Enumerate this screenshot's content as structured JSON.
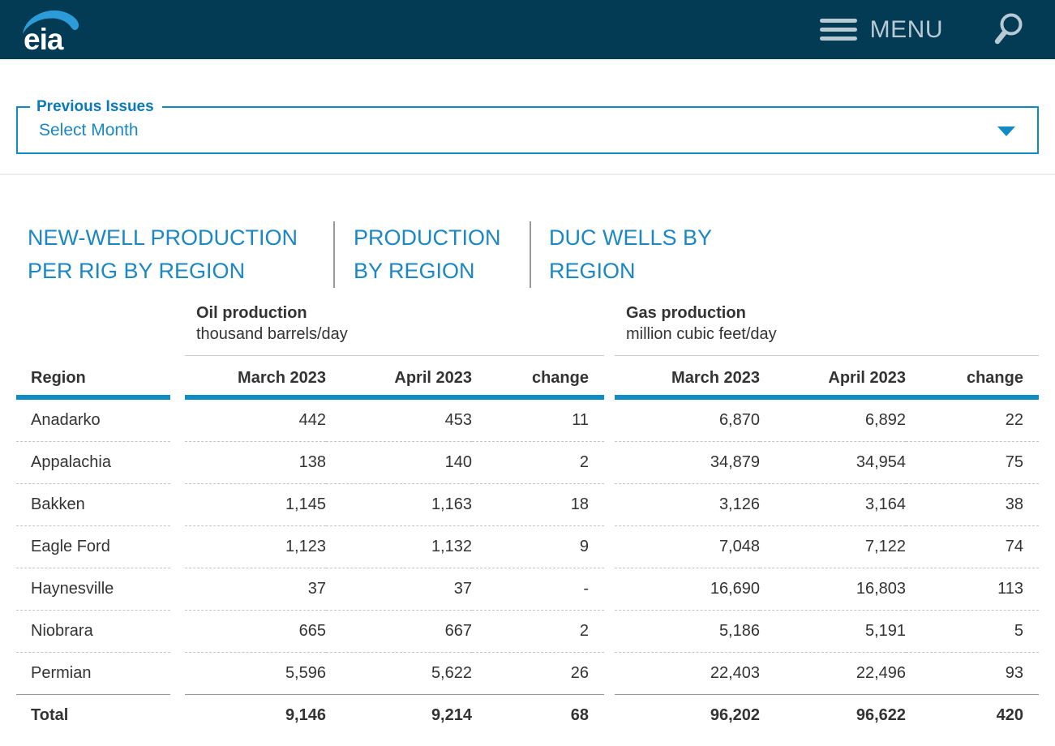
{
  "header": {
    "logo": "eia",
    "menu_label": "MENU"
  },
  "previous_issues": {
    "legend": "Previous Issues",
    "value": "Select Month"
  },
  "tabs": [
    {
      "label": "NEW-WELL PRODUCTION PER RIG BY REGION"
    },
    {
      "label": "PRODUCTION BY REGION"
    },
    {
      "label": "DUC WELLS BY REGION"
    }
  ],
  "table": {
    "region_header": "Region",
    "oil": {
      "title": "Oil production",
      "subtitle": "thousand barrels/day",
      "columns": [
        "March 2023",
        "April 2023",
        "change"
      ]
    },
    "gas": {
      "title": "Gas production",
      "subtitle": "million cubic feet/day",
      "columns": [
        "March 2023",
        "April 2023",
        "change"
      ]
    },
    "rows": [
      {
        "region": "Anadarko",
        "oil": [
          "442",
          "453",
          "11"
        ],
        "gas": [
          "6,870",
          "6,892",
          "22"
        ]
      },
      {
        "region": "Appalachia",
        "oil": [
          "138",
          "140",
          "2"
        ],
        "gas": [
          "34,879",
          "34,954",
          "75"
        ]
      },
      {
        "region": "Bakken",
        "oil": [
          "1,145",
          "1,163",
          "18"
        ],
        "gas": [
          "3,126",
          "3,164",
          "38"
        ]
      },
      {
        "region": "Eagle Ford",
        "oil": [
          "1,123",
          "1,132",
          "9"
        ],
        "gas": [
          "7,048",
          "7,122",
          "74"
        ]
      },
      {
        "region": "Haynesville",
        "oil": [
          "37",
          "37",
          "-"
        ],
        "gas": [
          "16,690",
          "16,803",
          "113"
        ]
      },
      {
        "region": "Niobrara",
        "oil": [
          "665",
          "667",
          "2"
        ],
        "gas": [
          "5,186",
          "5,191",
          "5"
        ]
      },
      {
        "region": "Permian",
        "oil": [
          "5,596",
          "5,622",
          "26"
        ],
        "gas": [
          "22,403",
          "22,496",
          "93"
        ]
      }
    ],
    "total": {
      "region": "Total",
      "oil": [
        "9,146",
        "9,214",
        "68"
      ],
      "gas": [
        "96,202",
        "96,622",
        "420"
      ]
    }
  },
  "colors": {
    "header_bg": "#043b54",
    "header_fg": "#b7c9d3",
    "link_blue": "#1b87c3",
    "accent_blue": "#0e8cc3",
    "swoosh_blue": "#2b9cd8"
  }
}
